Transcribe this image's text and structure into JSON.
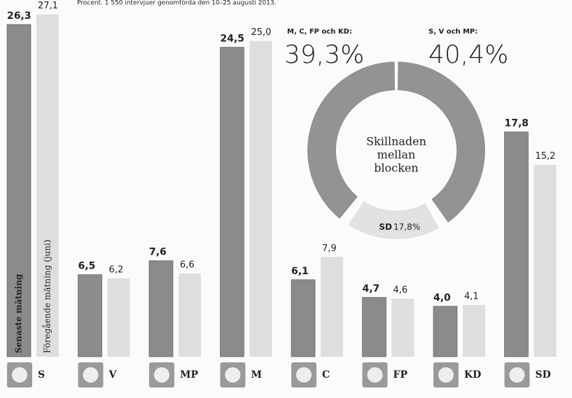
{
  "chart_data": [
    {
      "type": "bar",
      "subtitle": "Procent. 1 550 intervjuer genomförda den 10–25 augusti 2013.",
      "categories": [
        "S",
        "V",
        "MP",
        "M",
        "C",
        "FP",
        "KD",
        "SD"
      ],
      "series": [
        {
          "name": "Senaste mätning",
          "color": "#8b8b8b",
          "values": [
            26.3,
            6.5,
            7.6,
            24.5,
            6.1,
            4.7,
            4.0,
            17.8
          ],
          "value_labels": [
            "26,3",
            "6,5",
            "7,6",
            "24,5",
            "6,1",
            "4,7",
            "4,0",
            "17,8"
          ]
        },
        {
          "name": "Föregående mätning (juni)",
          "color": "#dedede",
          "values": [
            27.1,
            6.2,
            6.6,
            25.0,
            7.9,
            4.6,
            4.1,
            15.2
          ],
          "value_labels": [
            "27,1",
            "6,2",
            "6,6",
            "25,0",
            "7,9",
            "4,6",
            "4,1",
            "15,2"
          ]
        }
      ]
    },
    {
      "type": "pie",
      "center_label": [
        "Skillnaden",
        "mellan",
        "blocken"
      ],
      "categories": [
        "M, C, FP och KD:",
        "S, V och MP:",
        "SD"
      ],
      "values": [
        39.3,
        40.4,
        17.8
      ],
      "value_labels": [
        "39,3%",
        "40,4%",
        "17,8%"
      ],
      "colors": [
        "#939393",
        "#939393",
        "#e2e2e2"
      ]
    }
  ]
}
